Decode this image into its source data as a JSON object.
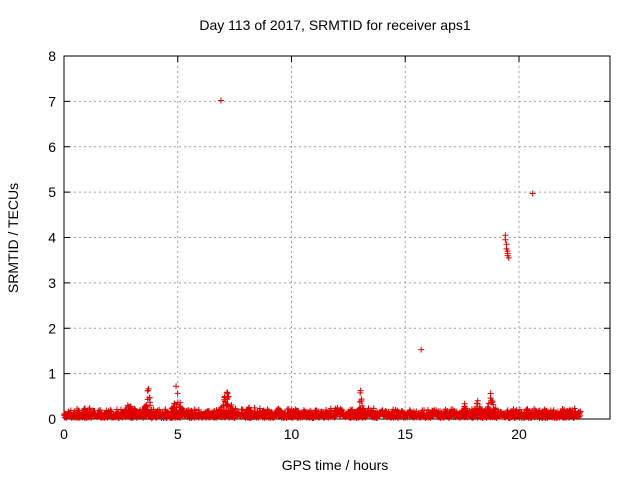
{
  "chart_data": {
    "type": "scatter",
    "title": "Day 113 of 2017, SRMTID for receiver aps1",
    "xlabel": "GPS time / hours",
    "ylabel": "SRMTID / TECUs",
    "xlim": [
      0,
      24
    ],
    "ylim": [
      0,
      8
    ],
    "xticks": [
      0,
      5,
      10,
      15,
      20
    ],
    "yticks": [
      0,
      1,
      2,
      3,
      4,
      5,
      6,
      7,
      8
    ],
    "grid": true,
    "marker": "+",
    "color": "#e00000",
    "baseline": {
      "description": "dense noise band of points",
      "x_range": [
        0,
        22.7
      ],
      "typical_y_range": [
        0.02,
        0.25
      ]
    },
    "clusters": [
      {
        "x_range": [
          2.5,
          3.2
        ],
        "y_max": 0.35
      },
      {
        "x_range": [
          3.5,
          3.9
        ],
        "y_max": 0.72
      },
      {
        "x_range": [
          4.7,
          5.2
        ],
        "y_max": 0.82
      },
      {
        "x_range": [
          6.8,
          7.5
        ],
        "y_max": 0.65
      },
      {
        "x_range": [
          7.9,
          8.3
        ],
        "y_max": 0.3
      },
      {
        "x_range": [
          12.9,
          13.2
        ],
        "y_max": 0.7
      },
      {
        "x_range": [
          17.4,
          17.8
        ],
        "y_max": 0.35
      },
      {
        "x_range": [
          18.0,
          18.4
        ],
        "y_max": 0.45
      },
      {
        "x_range": [
          18.5,
          19.0
        ],
        "y_max": 0.58
      }
    ],
    "outliers": [
      {
        "x": 6.9,
        "y": 7.02
      },
      {
        "x": 15.7,
        "y": 1.53
      },
      {
        "x": 19.4,
        "y": 4.05
      },
      {
        "x": 19.4,
        "y": 3.95
      },
      {
        "x": 19.45,
        "y": 3.85
      },
      {
        "x": 19.45,
        "y": 3.75
      },
      {
        "x": 19.5,
        "y": 3.65
      },
      {
        "x": 19.5,
        "y": 3.6
      },
      {
        "x": 19.55,
        "y": 3.55
      },
      {
        "x": 19.5,
        "y": 3.7
      },
      {
        "x": 20.6,
        "y": 4.97
      }
    ]
  }
}
